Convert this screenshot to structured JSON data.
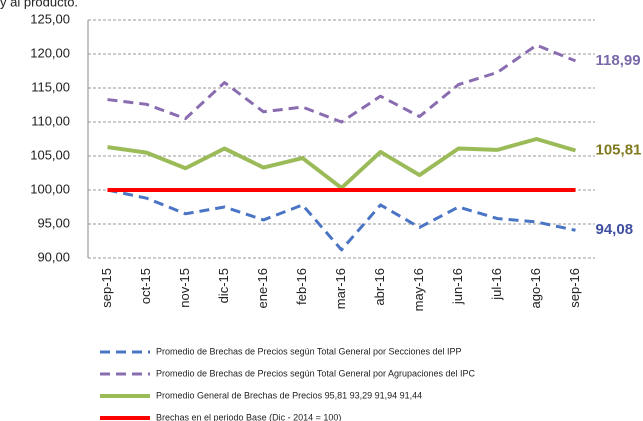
{
  "chart_data": {
    "type": "line",
    "title": "y al producto.",
    "categories": [
      "sep-15",
      "oct-15",
      "nov-15",
      "dic-15",
      "ene-16",
      "feb-16",
      "mar-16",
      "abr-16",
      "may-16",
      "jun-16",
      "jul-16",
      "ago-16",
      "sep-16"
    ],
    "ylim": [
      90,
      125
    ],
    "yticks": [
      {
        "value": 90,
        "label": "90,00"
      },
      {
        "value": 95,
        "label": "95,00"
      },
      {
        "value": 100,
        "label": "100,00"
      },
      {
        "value": 105,
        "label": "105,00"
      },
      {
        "value": 110,
        "label": "110,00"
      },
      {
        "value": 115,
        "label": "115,00"
      },
      {
        "value": 120,
        "label": "120,00"
      },
      {
        "value": 125,
        "label": "125,00"
      }
    ],
    "grid": true,
    "series": [
      {
        "name": "Promedio de Brechas de Precios según Total General por Secciones del IPP",
        "color": "#4a74c4",
        "dashed": true,
        "values": [
          100,
          98.8,
          96.5,
          97.5,
          95.6,
          97.8,
          91.2,
          97.8,
          94.5,
          97.5,
          95.8,
          95.3,
          94.08
        ],
        "value_labels": [
          null,
          null,
          null,
          null,
          null,
          null,
          null,
          null,
          null,
          null,
          null,
          null,
          "94,08"
        ],
        "label_color": "#3f4fa0"
      },
      {
        "name": "Promedio de Brechas de Precios según Total General por Agrupaciones del IPC",
        "color": "#8a6cb0",
        "dashed": true,
        "values": [
          113.3,
          112.6,
          110.5,
          115.8,
          111.5,
          112.2,
          110,
          113.8,
          110.8,
          115.5,
          117.3,
          121.3,
          118.99
        ],
        "value_labels": [
          null,
          null,
          null,
          null,
          null,
          null,
          null,
          null,
          null,
          null,
          null,
          null,
          "118,99"
        ],
        "label_color": "#7a68a8"
      },
      {
        "name": "Promedio General de Brechas de Precios  95,81 93,29 91,94 91,44",
        "color": "#9bbb59",
        "dashed": false,
        "values": [
          106.3,
          105.5,
          103.2,
          106.1,
          103.3,
          104.7,
          100.3,
          105.6,
          102.2,
          106.1,
          105.9,
          107.5,
          105.81
        ],
        "value_labels": [
          null,
          null,
          null,
          null,
          null,
          null,
          null,
          null,
          null,
          null,
          null,
          null,
          "105,81"
        ],
        "label_color": "#7f7a1e"
      },
      {
        "name": "Brechas en el periodo Base (Dic - 2014 = 100)",
        "color": "#ff0000",
        "dashed": false,
        "values": [
          100,
          100,
          100,
          100,
          100,
          100,
          100,
          100,
          100,
          100,
          100,
          100,
          100
        ],
        "value_labels": [
          null,
          null,
          null,
          null,
          null,
          null,
          null,
          null,
          null,
          null,
          null,
          null,
          null
        ],
        "label_color": "#ff0000"
      }
    ]
  }
}
